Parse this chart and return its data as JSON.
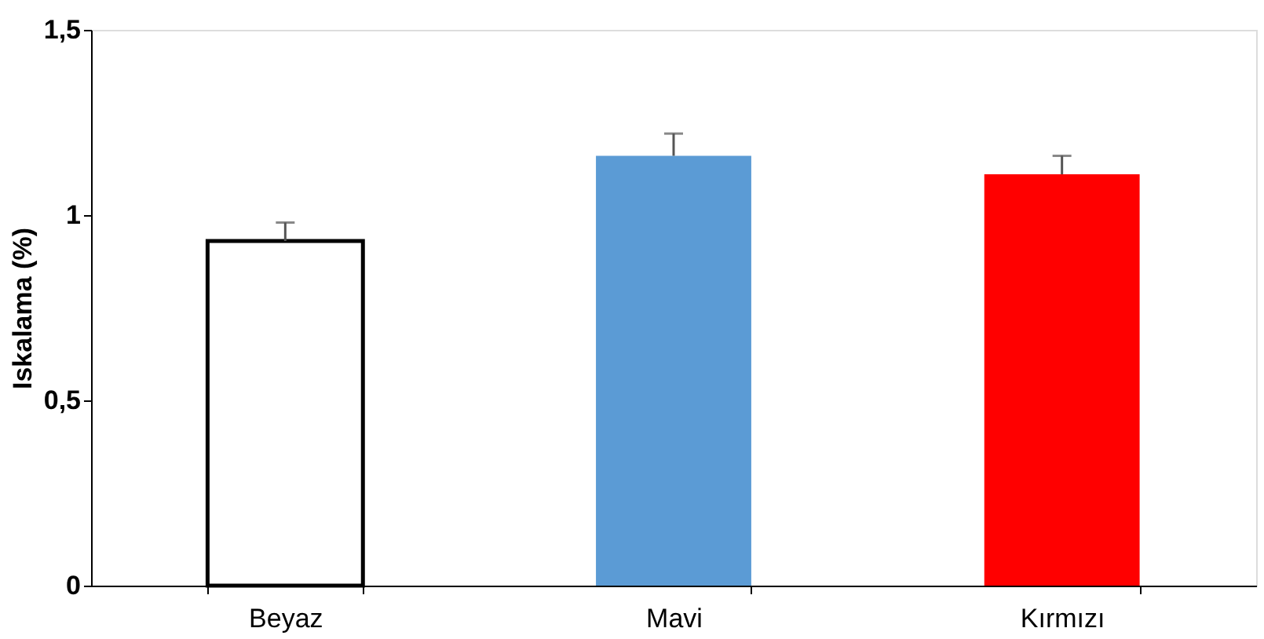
{
  "chart_data": {
    "type": "bar",
    "ylabel": "Iskalama (%)",
    "categories": [
      "Beyaz",
      "Mavi",
      "Kırmızı"
    ],
    "values": [
      0.93,
      1.16,
      1.11
    ],
    "colors": [
      "#ffffff",
      "#5b9bd5",
      "#ff0000"
    ],
    "errors": [
      [
        0.93,
        0.98
      ],
      [
        1.16,
        1.22
      ],
      [
        1.11,
        1.16
      ]
    ],
    "ylim": [
      0,
      1.5
    ],
    "yticks": [
      0,
      {
        "value": 0.5,
        "label": "0,5"
      },
      1,
      {
        "value": 1.5,
        "label": "1,5"
      }
    ],
    "grid": false
  }
}
